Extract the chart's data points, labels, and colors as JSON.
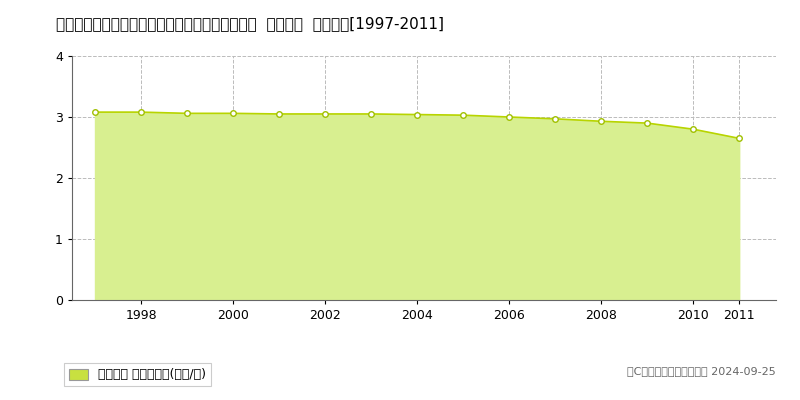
{
  "title": "長野県南佐久郡南牧村大字海尻字下殿岡６３０番  基準地価  地価推移[1997-2011]",
  "years": [
    1997,
    1998,
    1999,
    2000,
    2001,
    2002,
    2003,
    2004,
    2005,
    2006,
    2007,
    2008,
    2009,
    2010,
    2011
  ],
  "values": [
    3.08,
    3.08,
    3.06,
    3.06,
    3.05,
    3.05,
    3.05,
    3.04,
    3.03,
    3.0,
    2.97,
    2.93,
    2.9,
    2.8,
    2.65
  ],
  "ylim": [
    0,
    4
  ],
  "yticks": [
    0,
    1,
    2,
    3,
    4
  ],
  "line_color": "#b8d400",
  "fill_color": "#d8ef90",
  "marker_color": "#ffffff",
  "marker_edge_color": "#a0c000",
  "grid_color": "#bbbbbb",
  "background_color": "#ffffff",
  "plot_bg_color": "#ffffff",
  "legend_label": "基準地価 平均坪単価(万円/坪)",
  "legend_marker_color": "#c8e040",
  "copyright_text": "（C）土地価格ドットコム 2024-09-25",
  "title_fontsize": 11,
  "axis_fontsize": 9,
  "legend_fontsize": 9,
  "xticks": [
    1998,
    2000,
    2002,
    2004,
    2006,
    2008,
    2010,
    2011
  ],
  "xlim": [
    1996.5,
    2011.8
  ]
}
